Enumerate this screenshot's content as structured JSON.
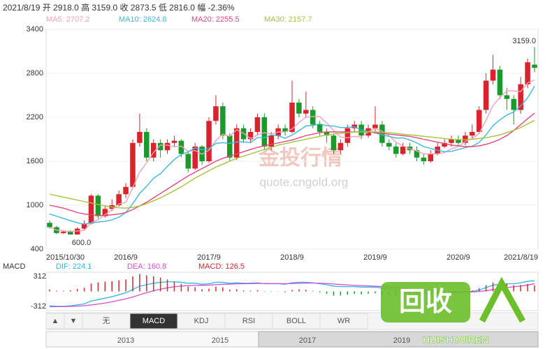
{
  "header": "2021/8/19 开 2918.0 高 3159.0 收 2873.5 低 2816.0 幅 -2.36%",
  "watermark": [
    "金投行情",
    "quote.cngold.org"
  ],
  "logo": [
    "回收",
    "HUISHOUREN"
  ],
  "toolbar": [
    "▲",
    "▼",
    "无",
    "MACD",
    "KDJ",
    "RSI",
    "BOLL",
    "WR"
  ],
  "navigator": [
    "2013",
    "2015",
    "2017",
    "2019"
  ],
  "chart_data": [
    {
      "type": "candlestick",
      "categories": [
        "2015/10/30",
        null,
        null,
        null,
        null,
        null,
        null,
        null,
        null,
        null,
        null,
        "2016/9",
        null,
        null,
        null,
        null,
        null,
        null,
        null,
        null,
        null,
        null,
        null,
        "2017/9",
        null,
        null,
        null,
        null,
        null,
        null,
        null,
        null,
        null,
        null,
        null,
        "2018/9",
        null,
        null,
        null,
        null,
        null,
        null,
        null,
        null,
        null,
        null,
        null,
        "2019/9",
        null,
        null,
        null,
        null,
        null,
        null,
        null,
        null,
        null,
        null,
        null,
        "2020/9",
        null,
        null,
        null,
        null,
        null,
        null,
        null,
        null,
        null,
        null,
        "2021/8/19"
      ],
      "open": [
        760,
        700,
        620,
        640,
        600,
        680,
        750,
        1130,
        850,
        950,
        1000,
        1150,
        1250,
        1850,
        2000,
        1650,
        1850,
        1750,
        1850,
        1880,
        1700,
        1500,
        1800,
        1600,
        2150,
        2350,
        1950,
        1650,
        2050,
        1900,
        2000,
        2200,
        1800,
        1950,
        2050,
        2000,
        2400,
        2250,
        2300,
        2100,
        2000,
        1950,
        1750,
        1850,
        2050,
        2100,
        1950,
        2050,
        2100,
        1850,
        1800,
        1700,
        1800,
        1750,
        1650,
        1600,
        1700,
        1800,
        1850,
        1900,
        1850,
        1950,
        2000,
        2300,
        2700,
        2850,
        2500,
        2450,
        2300,
        2650,
        2918
      ],
      "high": [
        790,
        720,
        660,
        660,
        700,
        790,
        1150,
        1150,
        1000,
        1080,
        1200,
        1300,
        1900,
        2250,
        2050,
        1900,
        1900,
        1900,
        1950,
        1900,
        1720,
        1850,
        1820,
        2200,
        2500,
        2400,
        1980,
        2100,
        2100,
        2050,
        2250,
        2250,
        2000,
        2100,
        2100,
        2700,
        2450,
        2550,
        2350,
        2150,
        2050,
        1980,
        1900,
        2100,
        2150,
        2150,
        2100,
        2350,
        2150,
        1900,
        1850,
        1850,
        1850,
        1800,
        1700,
        1750,
        1850,
        1900,
        1950,
        1950,
        2000,
        2100,
        2350,
        2800,
        3050,
        2900,
        2600,
        2500,
        2750,
        3000,
        3159
      ],
      "low": [
        680,
        605,
        610,
        600,
        610,
        660,
        740,
        820,
        830,
        920,
        980,
        1100,
        1230,
        1800,
        1600,
        1600,
        1650,
        1700,
        1800,
        1650,
        1450,
        1480,
        1550,
        1580,
        2100,
        1900,
        1600,
        1620,
        1850,
        1850,
        1950,
        1750,
        1750,
        1900,
        1950,
        1980,
        2200,
        2200,
        2050,
        1950,
        1850,
        1700,
        1700,
        1800,
        2000,
        1900,
        1920,
        2000,
        1800,
        1750,
        1650,
        1680,
        1700,
        1600,
        1550,
        1580,
        1680,
        1780,
        1800,
        1800,
        1820,
        1900,
        1980,
        2250,
        2650,
        2450,
        2300,
        2100,
        2250,
        2600,
        2816
      ],
      "close": [
        700,
        620,
        640,
        600,
        680,
        750,
        1130,
        850,
        950,
        1000,
        1150,
        1250,
        1850,
        2000,
        1650,
        1850,
        1750,
        1850,
        1880,
        1700,
        1500,
        1800,
        1600,
        2150,
        2350,
        1950,
        1650,
        2050,
        1900,
        2000,
        2200,
        1800,
        1950,
        2050,
        2000,
        2400,
        2250,
        2300,
        2100,
        2000,
        1950,
        1750,
        1850,
        2050,
        2100,
        1950,
        2050,
        2100,
        1850,
        1800,
        1700,
        1800,
        1750,
        1650,
        1600,
        1700,
        1800,
        1850,
        1900,
        1850,
        1950,
        2000,
        2300,
        2700,
        2850,
        2500,
        2450,
        2300,
        2650,
        2950,
        2873.5
      ],
      "up_color": "#d9232d",
      "down_color": "#1a9a2a",
      "series": [
        {
          "name": "MA5: 2707.2",
          "color": "#f3a2b6",
          "values": [
            700,
            660,
            653,
            640,
            648,
            658,
            760,
            802,
            872,
            936,
            1016,
            1040,
            1240,
            1450,
            1580,
            1720,
            1820,
            1820,
            1796,
            1806,
            1736,
            1746,
            1696,
            1750,
            1880,
            1970,
            1940,
            2030,
            1980,
            1910,
            1960,
            1990,
            1970,
            2000,
            2000,
            2040,
            2130,
            2200,
            2210,
            2210,
            2120,
            2020,
            1930,
            1920,
            1940,
            1930,
            2000,
            2050,
            2010,
            1950,
            1860,
            1810,
            1770,
            1740,
            1700,
            1700,
            1700,
            1720,
            1770,
            1800,
            1870,
            1910,
            1980,
            2160,
            2360,
            2470,
            2560,
            2560,
            2550,
            2670,
            2707.2
          ]
        },
        {
          "name": "MA10: 2624.8",
          "color": "#3ab8e0",
          "values": [
            880,
            850,
            820,
            790,
            760,
            740,
            760,
            770,
            780,
            800,
            837,
            900,
            1021,
            1161,
            1258,
            1368,
            1430,
            1530,
            1623,
            1693,
            1728,
            1783,
            1758,
            1773,
            1843,
            1853,
            1843,
            1863,
            1865,
            1853,
            1923,
            1923,
            1958,
            1948,
            1913,
            1958,
            2018,
            2083,
            2088,
            2110,
            2085,
            2080,
            2060,
            2060,
            2070,
            2025,
            2005,
            1985,
            1960,
            1940,
            1915,
            1920,
            1890,
            1850,
            1800,
            1775,
            1750,
            1730,
            1735,
            1760,
            1785,
            1805,
            1855,
            1960,
            2085,
            2165,
            2230,
            2275,
            2355,
            2465,
            2624.8
          ]
        },
        {
          "name": "MA20: 2255.5",
          "color": "#e8457a",
          "values": [
            1000,
            980,
            960,
            930,
            900,
            880,
            870,
            860,
            860,
            870,
            880,
            900,
            940,
            990,
            1040,
            1100,
            1160,
            1220,
            1280,
            1340,
            1400,
            1450,
            1500,
            1550,
            1600,
            1640,
            1670,
            1700,
            1730,
            1760,
            1790,
            1810,
            1830,
            1850,
            1870,
            1890,
            1920,
            1950,
            1970,
            1990,
            2000,
            2000,
            2000,
            2000,
            2000,
            2000,
            2000,
            1990,
            1980,
            1970,
            1960,
            1950,
            1940,
            1920,
            1900,
            1880,
            1860,
            1840,
            1820,
            1810,
            1800,
            1800,
            1810,
            1830,
            1860,
            1900,
            1950,
            2020,
            2100,
            2180,
            2255.5
          ]
        },
        {
          "name": "MA30: 2157.7",
          "color": "#a4c43a",
          "values": [
            1150,
            1130,
            1110,
            1090,
            1070,
            1050,
            1030,
            1010,
            990,
            975,
            965,
            960,
            970,
            990,
            1020,
            1060,
            1100,
            1150,
            1200,
            1250,
            1310,
            1370,
            1420,
            1470,
            1520,
            1560,
            1600,
            1640,
            1670,
            1700,
            1730,
            1760,
            1790,
            1820,
            1840,
            1860,
            1880,
            1900,
            1920,
            1940,
            1960,
            1970,
            1980,
            1990,
            2000,
            2000,
            2000,
            2000,
            1995,
            1990,
            1980,
            1970,
            1960,
            1950,
            1940,
            1930,
            1920,
            1910,
            1900,
            1895,
            1895,
            1900,
            1910,
            1920,
            1940,
            1960,
            1990,
            2020,
            2060,
            2110,
            2157.7
          ]
        }
      ],
      "ylim": [
        400,
        3400
      ],
      "yticks": [
        400,
        1000,
        1600,
        2200,
        2800,
        3400
      ],
      "grid": true,
      "max_label": "3159.0",
      "min_label": "600.0"
    },
    {
      "type": "macd",
      "title": "MACD",
      "series": [
        {
          "name": "DIF: 224.1",
          "color": "#2bb8e8",
          "type": "line",
          "values": [
            -300,
            -310,
            -310,
            -300,
            -280,
            -260,
            -200,
            -170,
            -140,
            -110,
            -70,
            -30,
            40,
            110,
            140,
            170,
            190,
            200,
            200,
            190,
            170,
            170,
            150,
            160,
            190,
            190,
            170,
            180,
            170,
            170,
            180,
            160,
            160,
            160,
            150,
            180,
            190,
            190,
            180,
            160,
            140,
            110,
            100,
            100,
            100,
            90,
            90,
            90,
            70,
            50,
            30,
            20,
            10,
            -10,
            -30,
            -40,
            -40,
            -40,
            -30,
            -20,
            -10,
            0,
            30,
            80,
            130,
            150,
            160,
            160,
            180,
            210,
            224.1
          ]
        },
        {
          "name": "DEA: 160.8",
          "color": "#d84ad0",
          "type": "line",
          "values": [
            -320,
            -318,
            -316,
            -312,
            -306,
            -298,
            -282,
            -264,
            -242,
            -216,
            -186,
            -155,
            -116,
            -70,
            -28,
            12,
            46,
            75,
            97,
            112,
            120,
            126,
            128,
            132,
            140,
            148,
            152,
            158,
            160,
            162,
            166,
            165,
            164,
            163,
            160,
            164,
            169,
            173,
            174,
            171,
            165,
            154,
            143,
            134,
            127,
            120,
            114,
            109,
            101,
            91,
            79,
            67,
            56,
            43,
            28,
            14,
            3,
            -6,
            -11,
            -13,
            -12,
            -10,
            -2,
            14,
            37,
            60,
            80,
            96,
            113,
            132,
            160.8
          ]
        },
        {
          "name": "MACD: 126.5",
          "color": "#d9232d",
          "type": "bar",
          "values": [
            40,
            16,
            12,
            24,
            52,
            76,
            164,
            188,
            204,
            212,
            232,
            250,
            312,
            360,
            336,
            316,
            288,
            250,
            206,
            156,
            100,
            88,
            44,
            56,
            100,
            84,
            36,
            44,
            20,
            16,
            28,
            -10,
            -8,
            -6,
            -20,
            32,
            42,
            34,
            12,
            -22,
            -50,
            -88,
            -86,
            -68,
            -54,
            -60,
            -48,
            -38,
            -62,
            -82,
            -98,
            -94,
            -92,
            -106,
            -116,
            -108,
            -86,
            -68,
            -38,
            -14,
            4,
            20,
            64,
            132,
            186,
            180,
            160,
            128,
            134,
            156,
            126.5
          ]
        }
      ],
      "down_color": "#1a9a2a",
      "ylim": [
        -400,
        400
      ],
      "yticks": [
        312,
        -312
      ]
    }
  ]
}
